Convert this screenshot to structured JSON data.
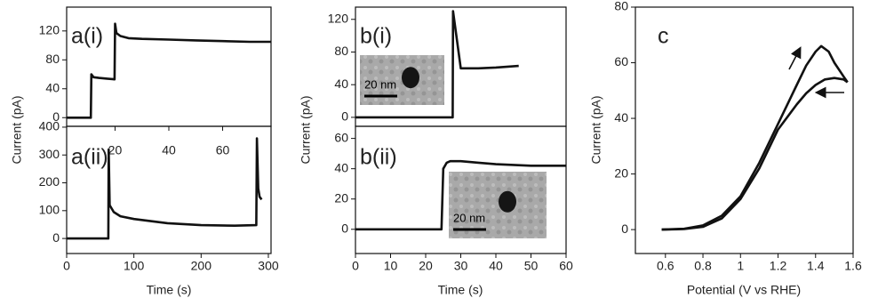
{
  "chart_data": [
    {
      "type": "line",
      "panel_label": "a(i)",
      "ylabel": "Current (pA)",
      "xlim": [
        2,
        78
      ],
      "xticks": [
        20,
        40,
        60
      ],
      "ylim": [
        -12,
        153
      ],
      "yticks": [
        0,
        40,
        80,
        120
      ],
      "series": [
        {
          "color": "#111111",
          "x": [
            2,
            11,
            11.2,
            12,
            14,
            17,
            19.8,
            20,
            20.5,
            22,
            25,
            30,
            40,
            50,
            60,
            70,
            78
          ],
          "values": [
            0,
            0,
            60,
            56,
            55,
            54,
            53,
            130,
            117,
            113,
            110,
            109,
            108,
            107,
            106,
            105,
            105
          ]
        }
      ]
    },
    {
      "type": "line",
      "panel_label": "a(ii)",
      "xlabel": "Time (s)",
      "xlim": [
        0,
        304
      ],
      "xticks": [
        0,
        100,
        200,
        300
      ],
      "ylim": [
        -54,
        403
      ],
      "yticks": [
        0,
        100,
        200,
        300,
        400
      ],
      "series": [
        {
          "color": "#111111",
          "x": [
            0,
            62,
            62.5,
            64,
            70,
            80,
            100,
            150,
            200,
            250,
            282,
            283,
            285,
            287,
            290
          ],
          "values": [
            0,
            0,
            320,
            120,
            95,
            80,
            70,
            55,
            48,
            46,
            48,
            360,
            180,
            150,
            140
          ]
        }
      ]
    },
    {
      "type": "line",
      "panel_label": "b(i)",
      "ylabel": "Current (pA)",
      "xlim": [
        0,
        60
      ],
      "ylim": [
        -11,
        135
      ],
      "yticks": [
        0,
        40,
        80,
        120
      ],
      "inset": {
        "scale_label": "20 nm"
      },
      "series": [
        {
          "color": "#111111",
          "x": [
            0,
            27.7,
            27.8,
            30,
            35,
            40,
            46.5
          ],
          "values": [
            0,
            0,
            130,
            60,
            60,
            61,
            63
          ]
        }
      ]
    },
    {
      "type": "line",
      "panel_label": "b(ii)",
      "xlabel": "Time (s)",
      "xlim": [
        0,
        60
      ],
      "xticks": [
        0,
        10,
        20,
        30,
        40,
        50,
        60
      ],
      "ylim": [
        -16,
        68
      ],
      "yticks": [
        0,
        20,
        40,
        60
      ],
      "inset": {
        "scale_label": "20 nm"
      },
      "series": [
        {
          "color": "#111111",
          "x": [
            0,
            24.5,
            25,
            26,
            27,
            30,
            35,
            40,
            50,
            60
          ],
          "values": [
            0,
            0,
            40,
            44,
            45,
            45,
            44,
            43,
            42,
            42
          ]
        }
      ]
    },
    {
      "type": "line",
      "panel_label": "c",
      "ylabel": "Current (pA)",
      "xlabel": "Potential (V vs RHE)",
      "xlim": [
        0.44,
        1.6
      ],
      "xticks": [
        0.6,
        0.8,
        1.0,
        1.2,
        1.4,
        1.6
      ],
      "ylim": [
        -8.6,
        80
      ],
      "yticks": [
        0,
        20,
        40,
        60,
        80
      ],
      "series": [
        {
          "color": "#111111",
          "x": [
            0.58,
            0.7,
            0.8,
            0.9,
            1.0,
            1.1,
            1.2,
            1.3,
            1.35,
            1.4,
            1.43,
            1.47,
            1.5,
            1.55,
            1.57
          ],
          "values": [
            0,
            0.3,
            1.5,
            5,
            12,
            24,
            38,
            52,
            59,
            64,
            66,
            64,
            60,
            55,
            53
          ]
        },
        {
          "color": "#111111",
          "x": [
            1.57,
            1.55,
            1.5,
            1.45,
            1.4,
            1.35,
            1.3,
            1.2,
            1.1,
            1.0,
            0.9,
            0.8,
            0.7,
            0.58
          ],
          "values": [
            53,
            54,
            54.5,
            54,
            52,
            49,
            45,
            36,
            22,
            11,
            4,
            1,
            0.2,
            0
          ]
        }
      ]
    }
  ]
}
